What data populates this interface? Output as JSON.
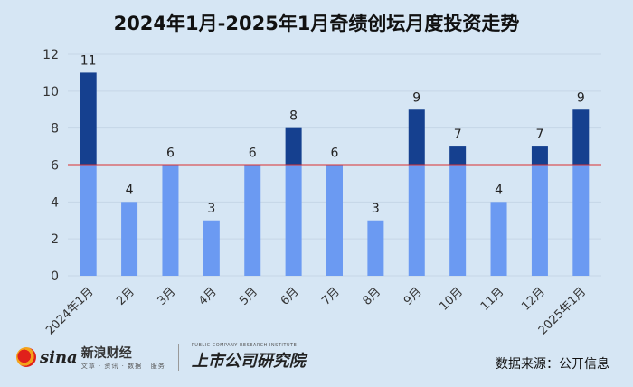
{
  "title": "2024年1月-2025年1月奇绩创坛月度投资走势",
  "source": "数据来源：公开信息",
  "logo": {
    "brand_latin": "sina",
    "brand_cn": "新浪财经",
    "brand_sub": "文章 · 资讯 · 数据 · 服务",
    "institute_cn": "上市公司研究院",
    "institute_en": "PUBLIC COMPANY RESEARCH INSTITUTE"
  },
  "colors": {
    "base_bar": "#6b9af2",
    "excess_bar": "#15408f",
    "reference_line": "#d93030",
    "background": "#d6e6f4"
  },
  "chart_data": {
    "type": "bar",
    "categories": [
      "2024年1月",
      "2月",
      "3月",
      "4月",
      "5月",
      "6月",
      "7月",
      "8月",
      "9月",
      "10月",
      "11月",
      "12月",
      "2025年1月"
    ],
    "values": [
      11,
      4,
      6,
      3,
      6,
      8,
      6,
      3,
      9,
      7,
      4,
      7,
      9
    ],
    "reference_line": 6,
    "ylim": [
      0,
      12
    ],
    "yticks": [
      0,
      2,
      4,
      6,
      8,
      10,
      12
    ],
    "title": "2024年1月-2025年1月奇绩创坛月度投资走势",
    "xlabel": "",
    "ylabel": "",
    "grid": true,
    "legend": false
  }
}
